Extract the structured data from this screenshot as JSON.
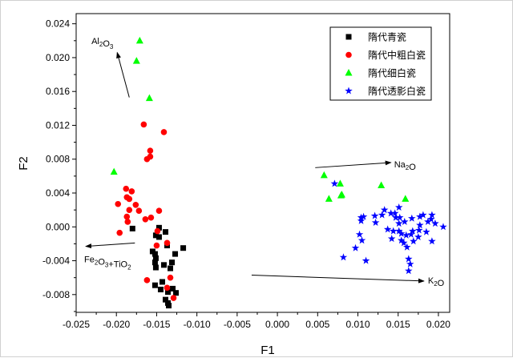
{
  "chart_data": {
    "type": "scatter",
    "title": "",
    "xlabel": "F1",
    "ylabel": "F2",
    "xlim": [
      -0.025,
      0.0214
    ],
    "ylim": [
      -0.0101,
      0.0252
    ],
    "xticks": [
      "-0.025",
      "-0.020",
      "-0.015",
      "-0.010",
      "-0.005",
      "0.000",
      "0.005",
      "0.010",
      "0.015",
      "0.020"
    ],
    "xtick_values": [
      -0.025,
      -0.02,
      -0.015,
      -0.01,
      -0.005,
      0,
      0.005,
      0.01,
      0.015,
      0.02
    ],
    "yticks": [
      "-0.008",
      "-0.004",
      "0.000",
      "0.004",
      "0.008",
      "0.012",
      "0.016",
      "0.020",
      "0.024"
    ],
    "ytick_values": [
      -0.008,
      -0.004,
      0,
      0.004,
      0.008,
      0.012,
      0.016,
      0.02,
      0.024
    ],
    "grid": false,
    "legend_position": "top-right",
    "series": [
      {
        "name": "隋代青瓷",
        "marker": "square",
        "color": "#000000",
        "points": [
          [
            -0.018,
            -0.0002
          ],
          [
            -0.0147,
            -0.0001
          ],
          [
            -0.0139,
            -0.0006
          ],
          [
            -0.0151,
            -0.001
          ],
          [
            -0.0147,
            -0.0012
          ],
          [
            -0.0137,
            -0.0022
          ],
          [
            -0.0117,
            -0.0025
          ],
          [
            -0.0155,
            -0.0029
          ],
          [
            -0.0152,
            -0.0032
          ],
          [
            -0.0127,
            -0.0032
          ],
          [
            -0.0151,
            -0.0037
          ],
          [
            -0.0152,
            -0.0042
          ],
          [
            -0.0131,
            -0.0042
          ],
          [
            -0.0141,
            -0.0045
          ],
          [
            -0.0151,
            -0.0048
          ],
          [
            -0.0133,
            -0.0049
          ],
          [
            -0.0143,
            -0.0065
          ],
          [
            -0.0152,
            -0.0069
          ],
          [
            -0.0145,
            -0.0074
          ],
          [
            -0.013,
            -0.0073
          ],
          [
            -0.0136,
            -0.0077
          ],
          [
            -0.0126,
            -0.0078
          ],
          [
            -0.0139,
            -0.0086
          ],
          [
            -0.0136,
            -0.009
          ],
          [
            -0.0135,
            -0.0093
          ]
        ]
      },
      {
        "name": "隋代中粗白瓷",
        "marker": "circle",
        "color": "#ff0000",
        "points": [
          [
            -0.0166,
            0.0121
          ],
          [
            -0.0141,
            0.0112
          ],
          [
            -0.0158,
            0.009
          ],
          [
            -0.0158,
            0.0083
          ],
          [
            -0.0162,
            0.008
          ],
          [
            -0.0188,
            0.0045
          ],
          [
            -0.0181,
            0.0042
          ],
          [
            -0.0187,
            0.0035
          ],
          [
            -0.0184,
            0.0033
          ],
          [
            -0.0198,
            0.0027
          ],
          [
            -0.0176,
            0.0026
          ],
          [
            -0.0184,
            0.002
          ],
          [
            -0.0172,
            0.0019
          ],
          [
            -0.0147,
            0.0019
          ],
          [
            -0.0187,
            0.0012
          ],
          [
            -0.0157,
            0.0011
          ],
          [
            -0.0164,
            0.0009
          ],
          [
            -0.0186,
            0.0006
          ],
          [
            -0.0149,
            -0.0005
          ],
          [
            -0.0196,
            -0.0007
          ],
          [
            -0.015,
            -0.0022
          ],
          [
            -0.0137,
            -0.0019
          ],
          [
            -0.0162,
            -0.0063
          ],
          [
            -0.0133,
            -0.006
          ],
          [
            -0.0137,
            -0.0072
          ],
          [
            -0.0129,
            -0.0084
          ]
        ]
      },
      {
        "name": "隋代细白瓷",
        "marker": "triangle",
        "color": "#00ff00",
        "points": [
          [
            -0.0171,
            0.022
          ],
          [
            -0.0175,
            0.0196
          ],
          [
            -0.0159,
            0.0152
          ],
          [
            -0.0203,
            0.0065
          ],
          [
            0.0058,
            0.0061
          ],
          [
            0.0078,
            0.0051
          ],
          [
            0.0064,
            0.0033
          ],
          [
            0.0079,
            0.0037
          ],
          [
            0.008,
            0.0038
          ],
          [
            0.0129,
            0.0049
          ],
          [
            0.0159,
            0.0033
          ]
        ]
      },
      {
        "name": "隋代透影白瓷",
        "marker": "star",
        "color": "#0000ff",
        "points": [
          [
            0.0071,
            0.0051
          ],
          [
            0.0104,
            0.0011
          ],
          [
            0.0107,
            0.0012
          ],
          [
            0.0104,
            0.0007
          ],
          [
            0.0121,
            0.0013
          ],
          [
            0.0122,
            0.0005
          ],
          [
            0.0133,
            0.002
          ],
          [
            0.013,
            0.0014
          ],
          [
            0.0141,
            0.0016
          ],
          [
            0.0146,
            0.0016
          ],
          [
            0.0151,
            0.0023
          ],
          [
            0.0152,
            0.0011
          ],
          [
            0.0147,
            0.0011
          ],
          [
            0.0158,
            0.0006
          ],
          [
            0.0151,
            0.0004
          ],
          [
            0.0167,
            0.001
          ],
          [
            0.0177,
            0.0012
          ],
          [
            0.0181,
            0.0014
          ],
          [
            0.0192,
            0.0014
          ],
          [
            0.0191,
            0.0009
          ],
          [
            0.0187,
            0.0006
          ],
          [
            0.0196,
            0.0004
          ],
          [
            0.0206,
            0.0
          ],
          [
            0.0177,
            0.0002
          ],
          [
            0.0137,
            -0.0003
          ],
          [
            0.0144,
            -0.0005
          ],
          [
            0.0151,
            -0.0005
          ],
          [
            0.0154,
            -0.0008
          ],
          [
            0.016,
            -0.001
          ],
          [
            0.0166,
            -0.0009
          ],
          [
            0.0168,
            -0.0005
          ],
          [
            0.0176,
            -0.0004
          ],
          [
            0.0185,
            -0.0006
          ],
          [
            0.0175,
            -0.0012
          ],
          [
            0.0169,
            -0.0017
          ],
          [
            0.0154,
            -0.0016
          ],
          [
            0.0157,
            -0.0019
          ],
          [
            0.0161,
            -0.0024
          ],
          [
            0.0142,
            -0.0014
          ],
          [
            0.0192,
            -0.0017
          ],
          [
            0.0102,
            -0.0009
          ],
          [
            0.0105,
            -0.0016
          ],
          [
            0.0097,
            -0.0025
          ],
          [
            0.0082,
            -0.0036
          ],
          [
            0.011,
            -0.004
          ],
          [
            0.0163,
            -0.0038
          ],
          [
            0.0165,
            -0.0044
          ],
          [
            0.0163,
            -0.0052
          ]
        ]
      }
    ],
    "annotations": [
      {
        "label": "Al2O3",
        "from": [
          -0.0184,
          0.0153
        ],
        "to": [
          -0.0199,
          0.0206
        ],
        "text_at": [
          -0.0231,
          0.022
        ]
      },
      {
        "label": "Na2O",
        "from": [
          0.0047,
          0.007
        ],
        "to": [
          0.0141,
          0.0076
        ],
        "text_at": [
          0.0145,
          0.0074
        ]
      },
      {
        "label": "K2O",
        "from": [
          -0.0032,
          -0.0057
        ],
        "to": [
          0.0182,
          -0.0064
        ],
        "text_at": [
          0.0187,
          -0.0063
        ]
      },
      {
        "label": "Fe2O3+TiO2",
        "from": [
          -0.0177,
          -0.0019
        ],
        "to": [
          -0.0238,
          -0.0023
        ],
        "text_at": [
          -0.024,
          -0.0038
        ]
      }
    ]
  }
}
